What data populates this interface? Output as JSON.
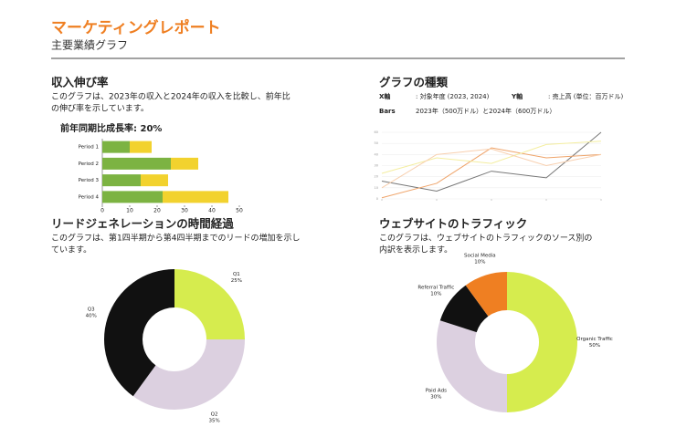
{
  "header": {
    "title": "マーケティングレポート",
    "subtitle": "主要業績グラフ"
  },
  "sections": [
    {
      "heading": "収入伸び率",
      "description": [
        "このグラフは、2023年の収入と2024年の収入を比較し、前年比",
        "の伸び率を示しています。"
      ]
    },
    {
      "heading": "グラフの種類",
      "details": [
        {
          "label": "X軸",
          "text": ": 対象年度 (2023, 2024)"
        },
        {
          "label": "Y軸",
          "text": ": 売上高 (単位：百万ドル)"
        },
        {
          "label": "Bars",
          "text": "2023年（500万ドル）と2024年（600万ドル）"
        }
      ]
    },
    {
      "heading": "リードジェネレーションの時間経過",
      "description": [
        "このグラフは、第1四半期から第4四半期までのリードの増加を示し",
        "ています。"
      ]
    },
    {
      "heading": "ウェブサイトのトラフィック",
      "description": [
        "このグラフは、ウェブサイトのトラフィックのソース別の",
        "内訳を表示します。"
      ]
    }
  ],
  "chart_data": [
    {
      "type": "bar",
      "orientation": "horizontal",
      "stacked": true,
      "title": "前年同期比成長率: 20%",
      "categories": [
        "Period 1",
        "Period 2",
        "Period 3",
        "Period 4"
      ],
      "series": [
        {
          "color": "#7cb342",
          "values": [
            10,
            25,
            14,
            22
          ]
        },
        {
          "color": "#f2d22e",
          "values": [
            8,
            10,
            10,
            24
          ]
        }
      ],
      "xlim": [
        0,
        50
      ],
      "xticks": [
        0,
        10,
        20,
        30,
        40,
        50
      ]
    },
    {
      "type": "line",
      "categories": [
        null,
        null,
        null,
        null,
        null
      ],
      "series": [
        {
          "color": "#777777",
          "values": [
            16,
            7,
            25,
            19,
            60
          ]
        },
        {
          "color": "#efa46a",
          "values": [
            1,
            14,
            46,
            37,
            40
          ]
        },
        {
          "color": "#f4eea0",
          "values": [
            23,
            37,
            32,
            49,
            52
          ]
        },
        {
          "color": "#f8cfae",
          "values": [
            10,
            40,
            45,
            30,
            40
          ]
        }
      ],
      "ylim": [
        0,
        60
      ],
      "yticks": [
        0,
        10,
        20,
        30,
        40,
        50,
        60
      ],
      "grid": true
    },
    {
      "type": "donut",
      "categories": [
        "Q1",
        "Q2",
        "Q3"
      ],
      "values": [
        25,
        35,
        40
      ],
      "value_labels": [
        "25%",
        "35%",
        "40%"
      ],
      "colors": [
        "#d6ec4e",
        "#dcd0e0",
        "#111111"
      ]
    },
    {
      "type": "donut",
      "categories": [
        "Organic Traffic",
        "Paid Ads",
        "Referral Traffic",
        "Social Media"
      ],
      "values": [
        50,
        30,
        10,
        10
      ],
      "value_labels": [
        "50%",
        "30%",
        "10%",
        "10%"
      ],
      "colors": [
        "#d6ec4e",
        "#dcd0e0",
        "#111111",
        "#ef7f22"
      ]
    }
  ]
}
